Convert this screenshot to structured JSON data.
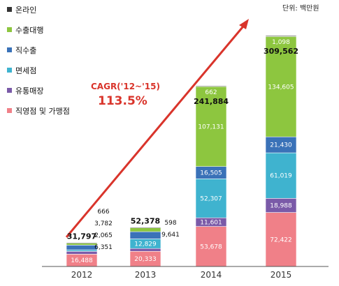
{
  "chart_data": {
    "type": "bar",
    "stacked": true,
    "unit": "단위: 백만원",
    "categories": [
      "2012",
      "2013",
      "2014",
      "2015"
    ],
    "series": [
      {
        "name": "직영점 및 가맹점",
        "color": "#f08088",
        "values": [
          16488,
          20333,
          53678,
          72422
        ]
      },
      {
        "name": "유통매장",
        "color": "#7a5aa8",
        "values": [
          3782,
          3804,
          11601,
          18988
        ]
      },
      {
        "name": "면세점",
        "color": "#3fb3cf",
        "values": [
          2065,
          12829,
          52307,
          61019
        ]
      },
      {
        "name": "직수출",
        "color": "#3a72b8",
        "values": [
          6351,
          9641,
          16505,
          21430
        ]
      },
      {
        "name": "수출대행",
        "color": "#8dc63f",
        "values": [
          2445,
          5173,
          107131,
          134605
        ]
      },
      {
        "name": "온라인",
        "color": "#333333",
        "values": [
          666,
          598,
          662,
          1098
        ]
      }
    ],
    "totals": [
      "31,797",
      "52,378",
      "241,884",
      "309,562"
    ],
    "ylim": [
      0,
      320000
    ],
    "legend_position": "top-left",
    "cagr": {
      "label": "CAGR('12~'15)",
      "value": "113.5%"
    }
  },
  "colors": {
    "accent_arrow": "#d9342b",
    "axis": "#555555"
  }
}
